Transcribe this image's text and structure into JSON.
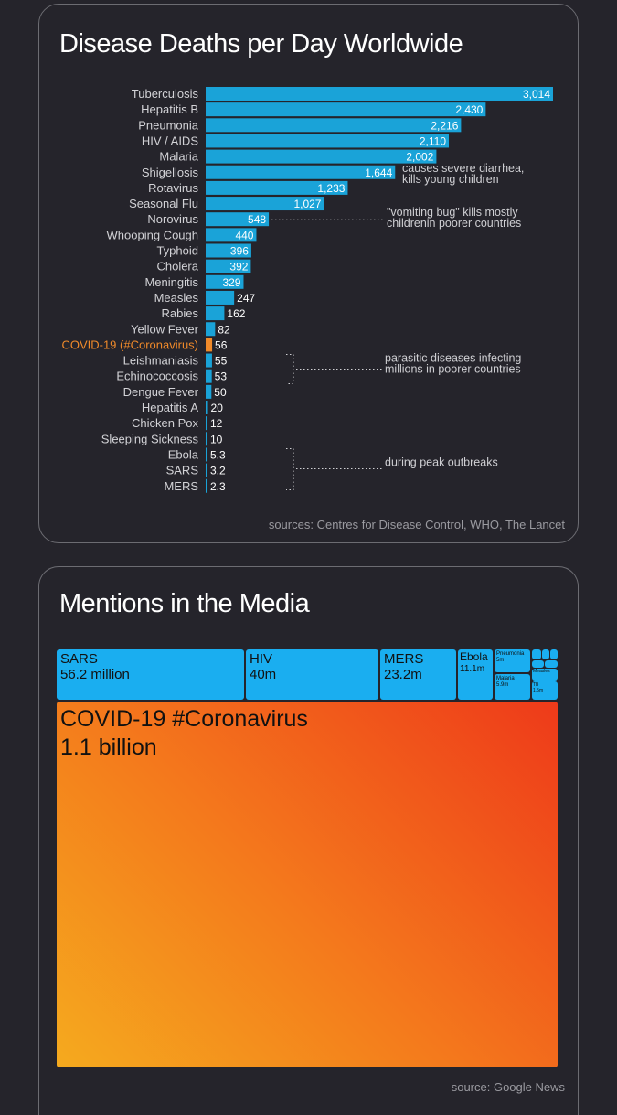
{
  "panel1": {
    "title": "Disease Deaths per Day Worldwide",
    "source": "sources: Centres for Disease Control, WHO, The Lancet"
  },
  "chart_data": [
    {
      "type": "bar",
      "orientation": "horizontal",
      "title": "Disease Deaths per Day Worldwide",
      "categories": [
        "Tuberculosis",
        "Hepatitis B",
        "Pneumonia",
        "HIV / AIDS",
        "Malaria",
        "Shigellosis",
        "Rotavirus",
        "Seasonal Flu",
        "Norovirus",
        "Whooping Cough",
        "Typhoid",
        "Cholera",
        "Meningitis",
        "Measles",
        "Rabies",
        "Yellow Fever",
        "COVID-19 (#Coronavirus)",
        "Leishmaniasis",
        "Echinococcosis",
        "Dengue Fever",
        "Hepatitis A",
        "Chicken Pox",
        "Sleeping Sickness",
        "Ebola",
        "SARS",
        "MERS"
      ],
      "values": [
        3014,
        2430,
        2216,
        2110,
        2002,
        1644,
        1233,
        1027,
        548,
        440,
        396,
        392,
        329,
        247,
        162,
        82,
        56,
        55,
        53,
        50,
        20,
        12,
        10,
        5.3,
        3.2,
        2.3
      ],
      "value_labels": [
        "3,014",
        "2,430",
        "2,216",
        "2,110",
        "2,002",
        "1,644",
        "1,233",
        "1,027",
        "548",
        "440",
        "396",
        "392",
        "329",
        "247",
        "162",
        "82",
        "56",
        "55",
        "53",
        "50",
        "20",
        "12",
        "10",
        "5.3",
        "3.2",
        "2.3"
      ],
      "highlight": "COVID-19 (#Coronavirus)",
      "colors": {
        "bar": "#1aa3d8",
        "bar_dark": "#147fb0",
        "highlight": "#f08a2a"
      },
      "annotations": [
        {
          "target": "Shigellosis",
          "lines": [
            "causes severe diarrhea,",
            "kills young children"
          ]
        },
        {
          "target": "Norovirus",
          "lines": [
            "\"vomiting bug\" kills mostly",
            "childrenin poorer countries"
          ]
        },
        {
          "target": "Leishmaniasis",
          "lines": [
            "parasitic diseases infecting",
            "millions in poorer countries"
          ]
        },
        {
          "target": "Ebola",
          "lines": [
            "during peak outbreaks"
          ]
        }
      ],
      "source": "sources: Centres for Disease Control, WHO, The Lancet"
    },
    {
      "type": "treemap",
      "title": "Mentions in the Media",
      "items": [
        {
          "name": "SARS",
          "label": "56.2 million",
          "value_millions": 56.2
        },
        {
          "name": "HIV",
          "label": "40m",
          "value_millions": 40
        },
        {
          "name": "MERS",
          "label": "23.2m",
          "value_millions": 23.2
        },
        {
          "name": "Ebola",
          "label": "11.1m",
          "value_millions": 11.1
        },
        {
          "name": "Pneumonia",
          "label": "5m",
          "value_millions": 5
        },
        {
          "name": "Malaria",
          "label": "5.9m",
          "value_millions": 5.9
        },
        {
          "name": "Measles",
          "label": "",
          "value_millions": null
        },
        {
          "name": "TB",
          "label": "1.5m",
          "value_millions": 1.5
        },
        {
          "name": "COVID-19 #Coronavirus",
          "label": "1.1 billion",
          "value_millions": 1100
        }
      ],
      "colors": {
        "box": "#1aaef0",
        "covid_start": "#f5a51e",
        "covid_end": "#ee3a1a"
      },
      "source": "source: Google News"
    }
  ],
  "panel2": {
    "title": "Mentions in the Media",
    "source": "source: Google News"
  },
  "treemap": {
    "sars": {
      "name": "SARS",
      "value": "56.2 million"
    },
    "hiv": {
      "name": "HIV",
      "value": "40m"
    },
    "mers": {
      "name": "MERS",
      "value": "23.2m"
    },
    "ebola": {
      "name": "Ebola",
      "value": "11.1m"
    },
    "pneumonia": {
      "name": "Pneumonia",
      "value": "5m"
    },
    "malaria": {
      "name": "Malaria",
      "value": "5.9m"
    },
    "measles": {
      "name": "Measles",
      "value": ""
    },
    "tb": {
      "name": "TB",
      "value": "1.5m"
    },
    "covid": {
      "name": "COVID-19 #Coronavirus",
      "value": "1.1 billion"
    }
  }
}
